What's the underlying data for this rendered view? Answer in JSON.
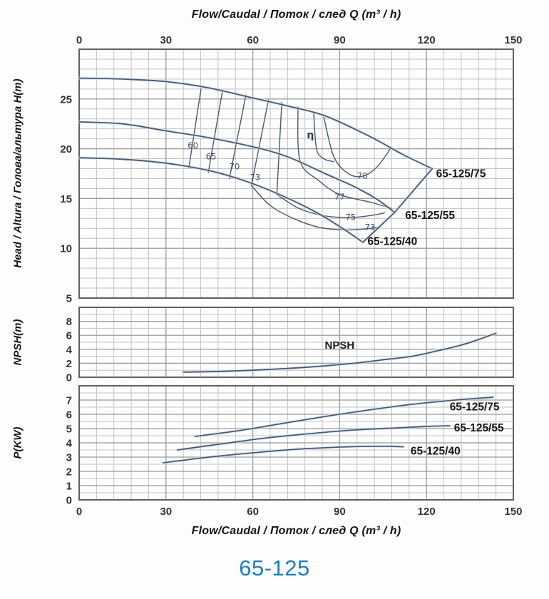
{
  "figure_title": "65-125",
  "colors": {
    "curve": "#4a5870",
    "curve_glow": "#d9e7f3",
    "grid_minor": "#c2c2c2",
    "grid_major": "#999999",
    "border": "#606060",
    "tick_text": "#333333",
    "figure_title": "#1b7dc0"
  },
  "chart_data": [
    {
      "id": "head",
      "type": "line",
      "xlabel": "Flow/Caudal / Поток / след  Q (m³ / h)",
      "ylabel": "Head / Altura / Голова/альтура H(m)",
      "xlim": [
        0,
        150
      ],
      "ylim": [
        5,
        30
      ],
      "xticks": [
        0,
        30,
        60,
        90,
        120,
        150
      ],
      "yticks": [
        25,
        20,
        15,
        10,
        5
      ],
      "x_minor_step": 6,
      "y_minor_step": 1,
      "y_major_step": 5,
      "tick_side": "top",
      "grid": true,
      "series": [
        {
          "name": "65-125/75",
          "smooth": true,
          "points": [
            [
              0,
              27.1
            ],
            [
              15,
              27.0
            ],
            [
              30,
              26.75
            ],
            [
              45,
              26.1
            ],
            [
              60,
              25.1
            ],
            [
              72,
              24.3
            ],
            [
              85,
              23.3
            ],
            [
              100,
              21.3
            ],
            [
              112,
              19.4
            ],
            [
              122,
              18.0
            ]
          ]
        },
        {
          "name": "65-125/55",
          "smooth": true,
          "points": [
            [
              0,
              22.7
            ],
            [
              15,
              22.5
            ],
            [
              30,
              21.8
            ],
            [
              45,
              21.1
            ],
            [
              60,
              20.2
            ],
            [
              72,
              19.2
            ],
            [
              85,
              17.5
            ],
            [
              95,
              16.2
            ],
            [
              103,
              14.9
            ],
            [
              109,
              13.6
            ]
          ]
        },
        {
          "name": "65-125/40",
          "smooth": true,
          "points": [
            [
              0,
              19.1
            ],
            [
              15,
              18.95
            ],
            [
              30,
              18.55
            ],
            [
              45,
              17.8
            ],
            [
              58,
              16.7
            ],
            [
              70,
              15.3
            ],
            [
              82,
              13.6
            ],
            [
              91,
              12.0
            ],
            [
              98,
              10.6
            ]
          ]
        },
        {
          "name": "max-flow-boundary",
          "smooth": false,
          "points": [
            [
              122,
              18.0
            ],
            [
              109,
              13.6
            ],
            [
              98,
              10.6
            ]
          ]
        }
      ],
      "efficiency_contours": [
        {
          "name": "60",
          "points": [
            [
              42.1,
              26.0
            ],
            [
              37.9,
              18.1
            ]
          ]
        },
        {
          "name": "65",
          "points": [
            [
              49.5,
              25.8
            ],
            [
              44.6,
              17.6
            ]
          ]
        },
        {
          "name": "70",
          "points": [
            [
              57.6,
              25.4
            ],
            [
              51.9,
              17.0
            ]
          ]
        },
        {
          "name": "73-left",
          "points": [
            [
              65.4,
              24.9
            ],
            [
              59.5,
              16.3
            ]
          ]
        },
        {
          "name": "75-left",
          "points": [
            [
              70.0,
              24.65
            ],
            [
              68.3,
              15.4
            ]
          ]
        },
        {
          "name": "77",
          "points": [
            [
              75.6,
              24.2
            ],
            [
              76.3,
              18.8
            ],
            [
              82.8,
              16.8
            ],
            [
              90,
              15.4
            ],
            [
              101,
              14.6
            ],
            [
              108,
              14.0
            ]
          ]
        },
        {
          "name": "eta-hook",
          "points": [
            [
              81,
              23.7
            ],
            [
              82,
              20.0
            ],
            [
              84.5,
              19.0
            ],
            [
              88,
              18.7
            ]
          ]
        },
        {
          "name": "78",
          "points": [
            [
              84.5,
              23.2
            ],
            [
              88,
              19.2
            ],
            [
              93,
              17.5
            ],
            [
              98,
              17.25
            ],
            [
              103,
              18.2
            ],
            [
              107.5,
              20.0
            ]
          ]
        },
        {
          "name": "75-right",
          "points": [
            [
              68.3,
              15.4
            ],
            [
              76,
              14.0
            ],
            [
              85,
              13.25
            ],
            [
              94,
              13.1
            ],
            [
              101,
              13.3
            ],
            [
              105.5,
              13.55
            ]
          ]
        },
        {
          "name": "73-right",
          "points": [
            [
              59.5,
              16.3
            ],
            [
              66,
              14.3
            ],
            [
              74,
              13.0
            ],
            [
              83,
              12.1
            ],
            [
              92,
              11.85
            ],
            [
              99,
              11.95
            ],
            [
              103,
              12.1
            ]
          ]
        }
      ],
      "labels": [
        {
          "text": "65-125/75",
          "q": 123.3,
          "v": 17.5,
          "anchor": "start",
          "cls": "clabel"
        },
        {
          "text": "65-125/55",
          "q": 112.6,
          "v": 13.3,
          "anchor": "start",
          "cls": "clabel"
        },
        {
          "text": "65-125/40",
          "q": 99.6,
          "v": 10.7,
          "anchor": "start",
          "cls": "clabel"
        },
        {
          "text": "60",
          "q": 39.3,
          "v": 20.4,
          "anchor": "middle",
          "cls": "eff"
        },
        {
          "text": "65",
          "q": 45.6,
          "v": 19.3,
          "anchor": "middle",
          "cls": "eff"
        },
        {
          "text": "70",
          "q": 53.7,
          "v": 18.3,
          "anchor": "middle",
          "cls": "eff"
        },
        {
          "text": "73",
          "q": 60.8,
          "v": 17.2,
          "anchor": "middle",
          "cls": "eff"
        },
        {
          "text": "η",
          "q": 79.9,
          "v": 21.4,
          "anchor": "middle",
          "cls": "eta"
        },
        {
          "text": "78",
          "q": 97.8,
          "v": 17.35,
          "anchor": "middle",
          "cls": "eff"
        },
        {
          "text": "77",
          "q": 90.0,
          "v": 15.25,
          "anchor": "middle",
          "cls": "eff"
        },
        {
          "text": "75",
          "q": 93.8,
          "v": 13.2,
          "anchor": "middle",
          "cls": "eff"
        },
        {
          "text": "73",
          "q": 100.5,
          "v": 12.2,
          "anchor": "middle",
          "cls": "eff"
        }
      ]
    },
    {
      "id": "npsh",
      "type": "line",
      "xlabel": "",
      "ylabel": "NPSH(m)",
      "xlim": [
        0,
        150
      ],
      "ylim": [
        0,
        10
      ],
      "xticks": [
        0,
        30,
        60,
        90,
        120,
        150
      ],
      "yticks": [
        8,
        6,
        4,
        2,
        0
      ],
      "x_minor_step": 6,
      "y_minor_step": 1,
      "y_major_step": 2,
      "tick_side": "none",
      "grid": true,
      "series": [
        {
          "name": "NPSH",
          "smooth": true,
          "points": [
            [
              36,
              0.72
            ],
            [
              50,
              0.85
            ],
            [
              65,
              1.1
            ],
            [
              81,
              1.5
            ],
            [
              95,
              2.0
            ],
            [
              105,
              2.5
            ],
            [
              115,
              3.0
            ],
            [
              124,
              3.8
            ],
            [
              132,
              4.6
            ],
            [
              138,
              5.4
            ],
            [
              144,
              6.3
            ]
          ]
        }
      ],
      "labels": [
        {
          "text": "NPSH",
          "q": 90,
          "v": 4.6,
          "anchor": "middle",
          "cls": "nlabel"
        }
      ]
    },
    {
      "id": "power",
      "type": "line",
      "xlabel": "Flow/Caudal / Поток / след  Q (m³ / h)",
      "ylabel": "P(KW)",
      "xlim": [
        0,
        150
      ],
      "ylim": [
        0,
        8
      ],
      "xticks": [
        0,
        30,
        60,
        90,
        120,
        150
      ],
      "yticks": [
        7,
        6,
        5,
        4,
        3,
        2,
        1,
        0
      ],
      "x_minor_step": 6,
      "y_minor_step": 0.5,
      "y_major_step": 1,
      "tick_side": "bottom",
      "grid": true,
      "series": [
        {
          "name": "65-125/75",
          "smooth": true,
          "points": [
            [
              40,
              4.45
            ],
            [
              55,
              4.85
            ],
            [
              70,
              5.35
            ],
            [
              85,
              5.85
            ],
            [
              100,
              6.3
            ],
            [
              115,
              6.7
            ],
            [
              130,
              7.0
            ],
            [
              143,
              7.2
            ]
          ]
        },
        {
          "name": "65-125/55",
          "smooth": true,
          "points": [
            [
              34,
              3.5
            ],
            [
              50,
              3.95
            ],
            [
              65,
              4.35
            ],
            [
              80,
              4.65
            ],
            [
              95,
              4.9
            ],
            [
              110,
              5.05
            ],
            [
              120,
              5.15
            ],
            [
              128,
              5.2
            ]
          ]
        },
        {
          "name": "65-125/40",
          "smooth": true,
          "points": [
            [
              29,
              2.6
            ],
            [
              45,
              3.0
            ],
            [
              60,
              3.3
            ],
            [
              75,
              3.55
            ],
            [
              90,
              3.7
            ],
            [
              100,
              3.75
            ],
            [
              107,
              3.76
            ],
            [
              112,
              3.72
            ]
          ]
        }
      ],
      "labels": [
        {
          "text": "65-125/75",
          "q": 128.0,
          "v": 6.52,
          "anchor": "start",
          "cls": "clabel"
        },
        {
          "text": "65-125/55",
          "q": 129.5,
          "v": 5.05,
          "anchor": "start",
          "cls": "clabel"
        },
        {
          "text": "65-125/40",
          "q": 114.5,
          "v": 3.42,
          "anchor": "start",
          "cls": "clabel"
        }
      ]
    }
  ]
}
